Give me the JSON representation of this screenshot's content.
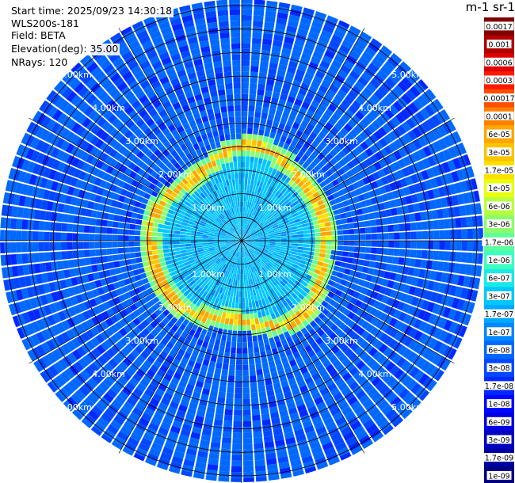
{
  "info": {
    "start_time": "Start time: 2025/09/23 14:30:18",
    "instrument": "WLS200s-181",
    "field": "Field: BETA",
    "elevation": "Elevation(deg): 35.00",
    "nrays": "NRays: 120"
  },
  "colorbar": {
    "title": "m-1 sr-1",
    "ticks": [
      "0.0017",
      "0.001",
      "0.0006",
      "0.0003",
      "0.00017",
      "0.0001",
      "6e-05",
      "3e-05",
      "1.7e-05",
      "1e-05",
      "6e-06",
      "3e-06",
      "1.7e-06",
      "1e-06",
      "6e-07",
      "3e-07",
      "1.7e-07",
      "1e-07",
      "6e-08",
      "3e-08",
      "1.7e-08",
      "1e-08",
      "6e-09",
      "3e-09",
      "1.7e-09",
      "1e-09"
    ],
    "colors": [
      "#800000",
      "#b00000",
      "#e00000",
      "#ff1a00",
      "#ff4d00",
      "#ff8000",
      "#ffa600",
      "#ffc400",
      "#ffe000",
      "#e8ff10",
      "#b8ff3f",
      "#8cff6b",
      "#5cff9b",
      "#3cffc0",
      "#1ce8e4",
      "#00c8ff",
      "#00a8ff",
      "#0088ff",
      "#0068ff",
      "#0048ff",
      "#0028ff",
      "#0008ff",
      "#0000e0",
      "#0000c0",
      "#0000a0",
      "#000080"
    ]
  },
  "chart_data": {
    "type": "heatmap",
    "title": "",
    "projection": "polar (PPI scan)",
    "range_ring_labels": [
      "1.00km",
      "2.00km",
      "3.00km",
      "4.00km",
      "5.00km"
    ],
    "range_rings_km": [
      1,
      2,
      3,
      4,
      5
    ],
    "max_range_km": 5.0,
    "n_rays": 120,
    "color_scale": "log",
    "value_range": [
      1e-09,
      0.0017
    ],
    "units": "m-1 sr-1",
    "features": [
      {
        "region": "inner disc, 0-1.8 km",
        "typical_value": 1.7e-07
      },
      {
        "region": "ring near 1.8 km",
        "typical_value": 1.7e-05
      },
      {
        "region": "outer field, 1.8-5.2 km",
        "typical_value": 3e-08
      }
    ]
  }
}
